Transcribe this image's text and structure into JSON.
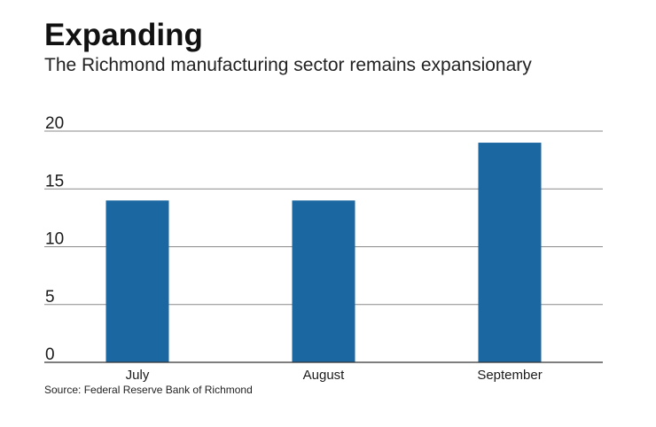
{
  "title": "Expanding",
  "subtitle": "The Richmond manufacturing sector remains expansionary",
  "source": "Source: Federal Reserve Bank of Richmond",
  "colors": {
    "bar": "#1b67a1",
    "grid": "#8a8a8a",
    "axis": "#333333"
  },
  "chart_data": {
    "type": "bar",
    "categories": [
      "July",
      "August",
      "September"
    ],
    "values": [
      14,
      14,
      19
    ],
    "ylim": [
      0,
      20
    ],
    "yticks": [
      0,
      5,
      10,
      15,
      20
    ],
    "grid": true,
    "xlabel": "",
    "ylabel": ""
  }
}
